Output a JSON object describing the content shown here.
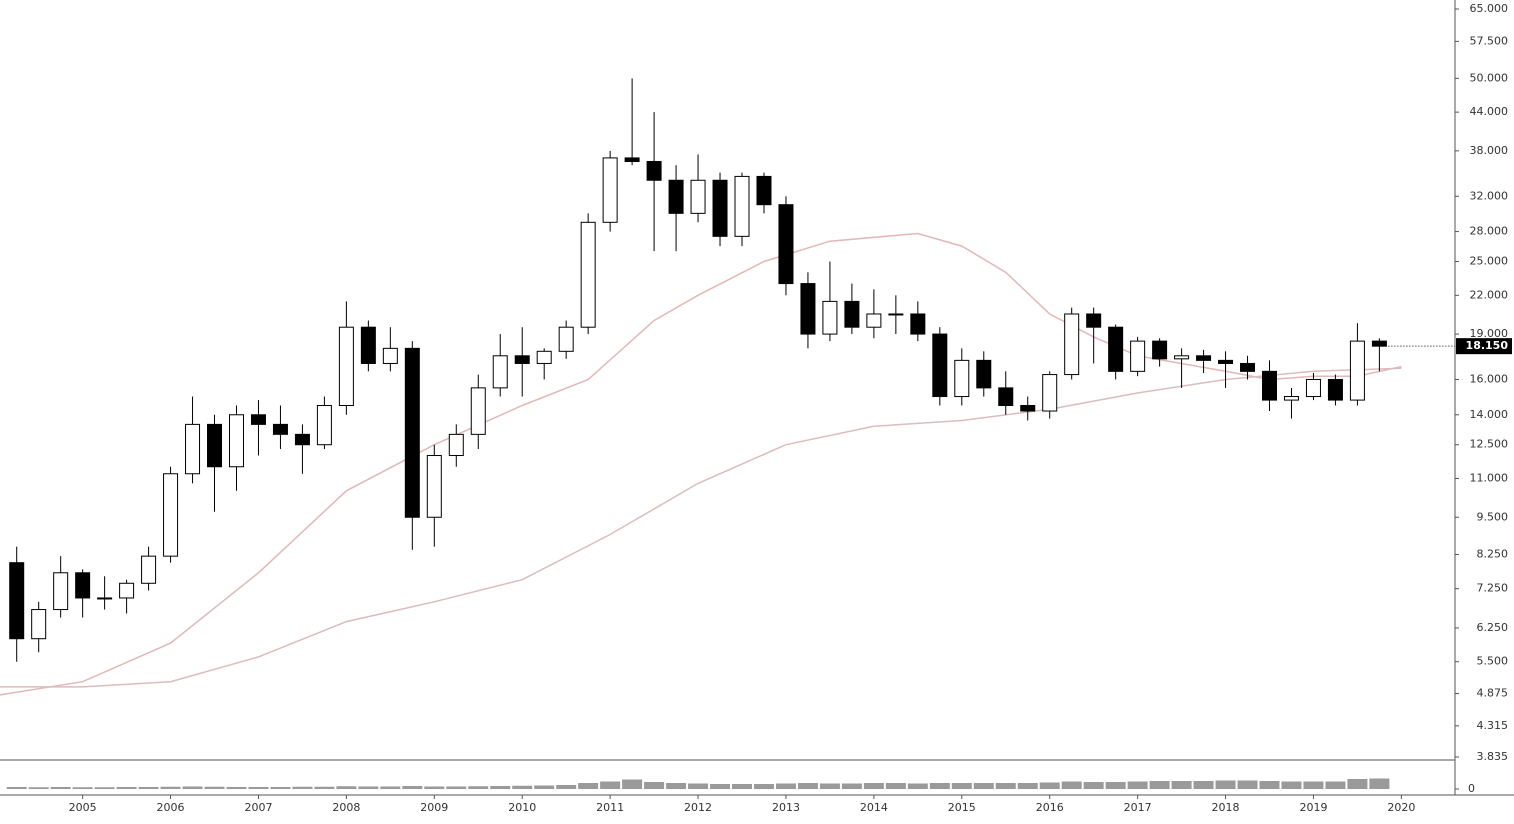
{
  "chart_data": {
    "type": "candlestick",
    "log_scale": true,
    "xlim": [
      2004.06,
      2020.61
    ],
    "xticks": [
      2005,
      2006,
      2007,
      2008,
      2009,
      2010,
      2011,
      2012,
      2013,
      2014,
      2015,
      2016,
      2017,
      2018,
      2019,
      2020
    ],
    "ylim": [
      3.835,
      65
    ],
    "yticks": [
      {
        "value": 65,
        "label": "65.000"
      },
      {
        "value": 57.5,
        "label": "57.500"
      },
      {
        "value": 50,
        "label": "50.000"
      },
      {
        "value": 44,
        "label": "44.000"
      },
      {
        "value": 38,
        "label": "38.000"
      },
      {
        "value": 32,
        "label": "32.000"
      },
      {
        "value": 28,
        "label": "28.000"
      },
      {
        "value": 25,
        "label": "25.000"
      },
      {
        "value": 22,
        "label": "22.000"
      },
      {
        "value": 19,
        "label": "19.000"
      },
      {
        "value": 16,
        "label": "16.000"
      },
      {
        "value": 14,
        "label": "14.000"
      },
      {
        "value": 12.5,
        "label": "12.500"
      },
      {
        "value": 11,
        "label": "11.000"
      },
      {
        "value": 9.5,
        "label": "9.500"
      },
      {
        "value": 8.25,
        "label": "8.250"
      },
      {
        "value": 7.25,
        "label": "7.250"
      },
      {
        "value": 6.25,
        "label": "6.250"
      },
      {
        "value": 5.5,
        "label": "5.500"
      },
      {
        "value": 4.875,
        "label": "4.875"
      },
      {
        "value": 4.315,
        "label": "4.315"
      },
      {
        "value": 3.835,
        "label": "3.835"
      }
    ],
    "x": [
      2004.25,
      2004.5,
      2004.75,
      2005,
      2005.25,
      2005.5,
      2005.75,
      2006,
      2006.25,
      2006.5,
      2006.75,
      2007,
      2007.25,
      2007.5,
      2007.75,
      2008,
      2008.25,
      2008.5,
      2008.75,
      2009,
      2009.25,
      2009.5,
      2009.75,
      2010,
      2010.25,
      2010.5,
      2010.75,
      2011,
      2011.25,
      2011.5,
      2011.75,
      2012,
      2012.25,
      2012.5,
      2012.75,
      2013,
      2013.25,
      2013.5,
      2013.75,
      2014,
      2014.25,
      2014.5,
      2014.75,
      2015,
      2015.25,
      2015.5,
      2015.75,
      2016,
      2016.25,
      2016.5,
      2016.75,
      2017,
      2017.25,
      2017.5,
      2017.75,
      2018,
      2018.25,
      2018.5,
      2018.75,
      2019,
      2019.25,
      2019.5,
      2019.75
    ],
    "open": [
      8,
      6,
      6.7,
      7.7,
      7,
      7,
      7.4,
      8.2,
      11.2,
      13.5,
      11.5,
      14,
      13.5,
      13,
      12.5,
      14.5,
      19.5,
      17,
      18,
      9.5,
      12,
      13,
      15.5,
      17.5,
      17,
      17.8,
      19.5,
      29,
      37,
      36.5,
      34,
      30,
      34,
      27.5,
      34.5,
      31,
      23,
      19,
      21.5,
      19.5,
      20.5,
      20.5,
      19,
      15,
      17.2,
      15.5,
      14.5,
      14.2,
      16.3,
      20.5,
      19.5,
      16.5,
      18.5,
      17.3,
      17.5,
      17.2,
      17,
      16.5,
      14.8,
      15,
      16,
      14.8,
      18.5
    ],
    "high": [
      8.5,
      6.9,
      8.2,
      7.8,
      7.6,
      7.5,
      8.5,
      11.5,
      15,
      14,
      14.5,
      14.8,
      14.5,
      13.5,
      15,
      21.5,
      20,
      19.5,
      18.5,
      12.5,
      13.5,
      16.3,
      19,
      19.5,
      18,
      20,
      30,
      38,
      50,
      44,
      36,
      37.5,
      35,
      35,
      35,
      32,
      24,
      25,
      23,
      22.5,
      22,
      21.5,
      19.5,
      18,
      17.8,
      16.5,
      15,
      16.5,
      21,
      21,
      19.7,
      18.8,
      18.7,
      18,
      17.9,
      17.8,
      17.5,
      17.2,
      15.5,
      16.4,
      16.3,
      19.8,
      18.7
    ],
    "low": [
      5.5,
      5.7,
      6.5,
      6.5,
      6.7,
      6.6,
      7.2,
      8,
      10.8,
      9.7,
      10.5,
      12,
      12.3,
      11.2,
      12.3,
      14,
      16.5,
      16.5,
      8.4,
      8.5,
      11.5,
      12.3,
      15,
      15,
      16,
      17.3,
      19,
      28,
      36,
      26,
      26,
      29,
      26.5,
      26.5,
      30,
      22,
      18,
      18.5,
      19,
      18.7,
      19,
      18.5,
      14.5,
      14.5,
      15,
      14,
      13.7,
      13.8,
      16,
      17,
      16,
      16.2,
      16.8,
      15.5,
      16.4,
      15.5,
      16,
      14.2,
      13.8,
      14.8,
      14.5,
      14.5,
      16.5
    ],
    "close": [
      6,
      6.7,
      7.7,
      7,
      7,
      7.4,
      8.2,
      11.2,
      13.5,
      11.5,
      14,
      13.5,
      13,
      12.5,
      14.5,
      19.5,
      17,
      18,
      9.5,
      12,
      13,
      15.5,
      17.5,
      17,
      17.8,
      19.5,
      29,
      37,
      36.5,
      34,
      30,
      34,
      27.5,
      34.5,
      31,
      23,
      19,
      21.5,
      19.5,
      20.5,
      20.5,
      19,
      15,
      17.2,
      15.5,
      14.5,
      14.2,
      16.3,
      20.5,
      19.5,
      16.5,
      18.5,
      17.3,
      17.5,
      17.2,
      17,
      16.5,
      14.8,
      15,
      16,
      14.8,
      18.5,
      18.15
    ],
    "volume": [
      8,
      7,
      8,
      7,
      7,
      8,
      8,
      9,
      10,
      9,
      8,
      8,
      8,
      9,
      9,
      11,
      10,
      10,
      12,
      10,
      10,
      11,
      12,
      13,
      14,
      16,
      24,
      30,
      38,
      28,
      24,
      22,
      20,
      20,
      20,
      22,
      24,
      22,
      22,
      24,
      24,
      22,
      24,
      24,
      24,
      24,
      24,
      26,
      30,
      28,
      28,
      30,
      32,
      32,
      32,
      34,
      34,
      32,
      30,
      30,
      30,
      40,
      42
    ],
    "vlim": [
      0,
      100
    ],
    "vticks": [
      0
    ],
    "last_value": 18.15,
    "last_value_label": "18.150",
    "moving_averages": [
      {
        "color": "#e3b7b7",
        "x": [
          2004.06,
          2005,
          2006,
          2007,
          2008,
          2009,
          2010,
          2010.75,
          2011.5,
          2012,
          2012.75,
          2013.5,
          2014.5,
          2015,
          2015.5,
          2016,
          2016.5,
          2017,
          2018,
          2018.5,
          2019,
          2019.5,
          2020
        ],
        "values": [
          4.85,
          5.1,
          5.9,
          7.7,
          10.5,
          12.5,
          14.5,
          16,
          20,
          22,
          25,
          27,
          27.8,
          26.5,
          24,
          20.5,
          18.8,
          17.5,
          16.5,
          16,
          16.2,
          16.2,
          16.8
        ]
      },
      {
        "color": "#dcbcbc",
        "x": [
          2004.06,
          2005,
          2006,
          2007,
          2008,
          2009,
          2010,
          2011,
          2012,
          2013,
          2014,
          2015,
          2016,
          2017,
          2018,
          2019,
          2020
        ],
        "values": [
          5,
          5,
          5.1,
          5.6,
          6.4,
          6.9,
          7.5,
          8.9,
          10.8,
          12.5,
          13.4,
          13.7,
          14.3,
          15.2,
          16,
          16.5,
          16.7
        ]
      }
    ]
  }
}
